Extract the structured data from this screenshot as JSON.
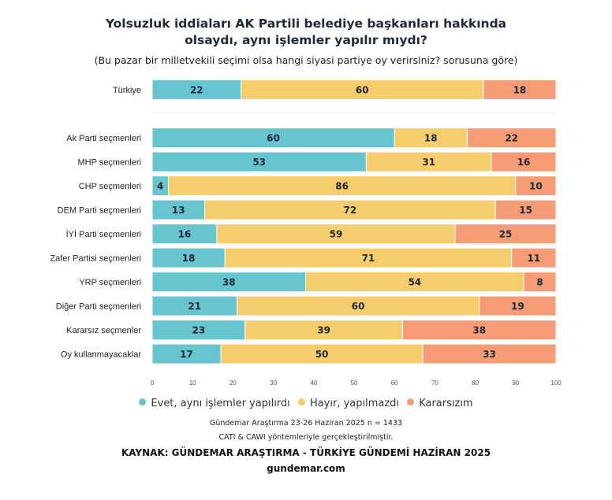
{
  "chart_data": {
    "type": "bar",
    "orientation": "horizontal-stacked",
    "title": "Yolsuzluk iddiaları AK Partili belediye başkanları hakkında olsaydı, aynı işlemler yapılır mıydı?",
    "subtitle": "(Bu pazar bir milletvekili seçimi olsa hangi siyasi partiye oy verirsiniz? sorusuna göre)",
    "categories": [
      "Türkiye",
      "Ak Parti seçmenleri",
      "MHP seçmenleri",
      "CHP seçmenleri",
      "DEM Parti seçmenleri",
      "İYİ Parti seçmenleri",
      "Zafer Partisi seçmenleri",
      "YRP seçmenleri",
      "Diğer Parti seçmenleri",
      "Kararsız seçmenler",
      "Oy kullanmayacaklar"
    ],
    "series": [
      {
        "name": "Evet, aynı işlemler yapılırdı",
        "color": "#67c5cf",
        "values": [
          22,
          60,
          53,
          4,
          13,
          16,
          18,
          38,
          21,
          23,
          17
        ]
      },
      {
        "name": "Hayır, yapılmazdı",
        "color": "#f6cd6c",
        "values": [
          60,
          18,
          31,
          86,
          72,
          59,
          71,
          54,
          60,
          39,
          50
        ]
      },
      {
        "name": "Kararsızım",
        "color": "#f59c76",
        "values": [
          18,
          22,
          16,
          10,
          15,
          25,
          11,
          8,
          19,
          38,
          33
        ]
      }
    ],
    "xlim": [
      0,
      100
    ],
    "xticks": [
      0,
      10,
      20,
      30,
      40,
      50,
      60,
      70,
      80,
      90,
      100
    ],
    "legend": "bottom"
  },
  "notes": {
    "line1": "Gündemar Araştırma 23-26 Haziran 2025 n = 1433",
    "line2": "CATI & CAWI yöntemleriyle gerçekleştirilmiştir.",
    "source": "KAYNAK: GÜNDEMAR ARAŞTIRMA - TÜRKİYE GÜNDEMİ HAZİRAN 2025",
    "website": "gundemar.com"
  }
}
